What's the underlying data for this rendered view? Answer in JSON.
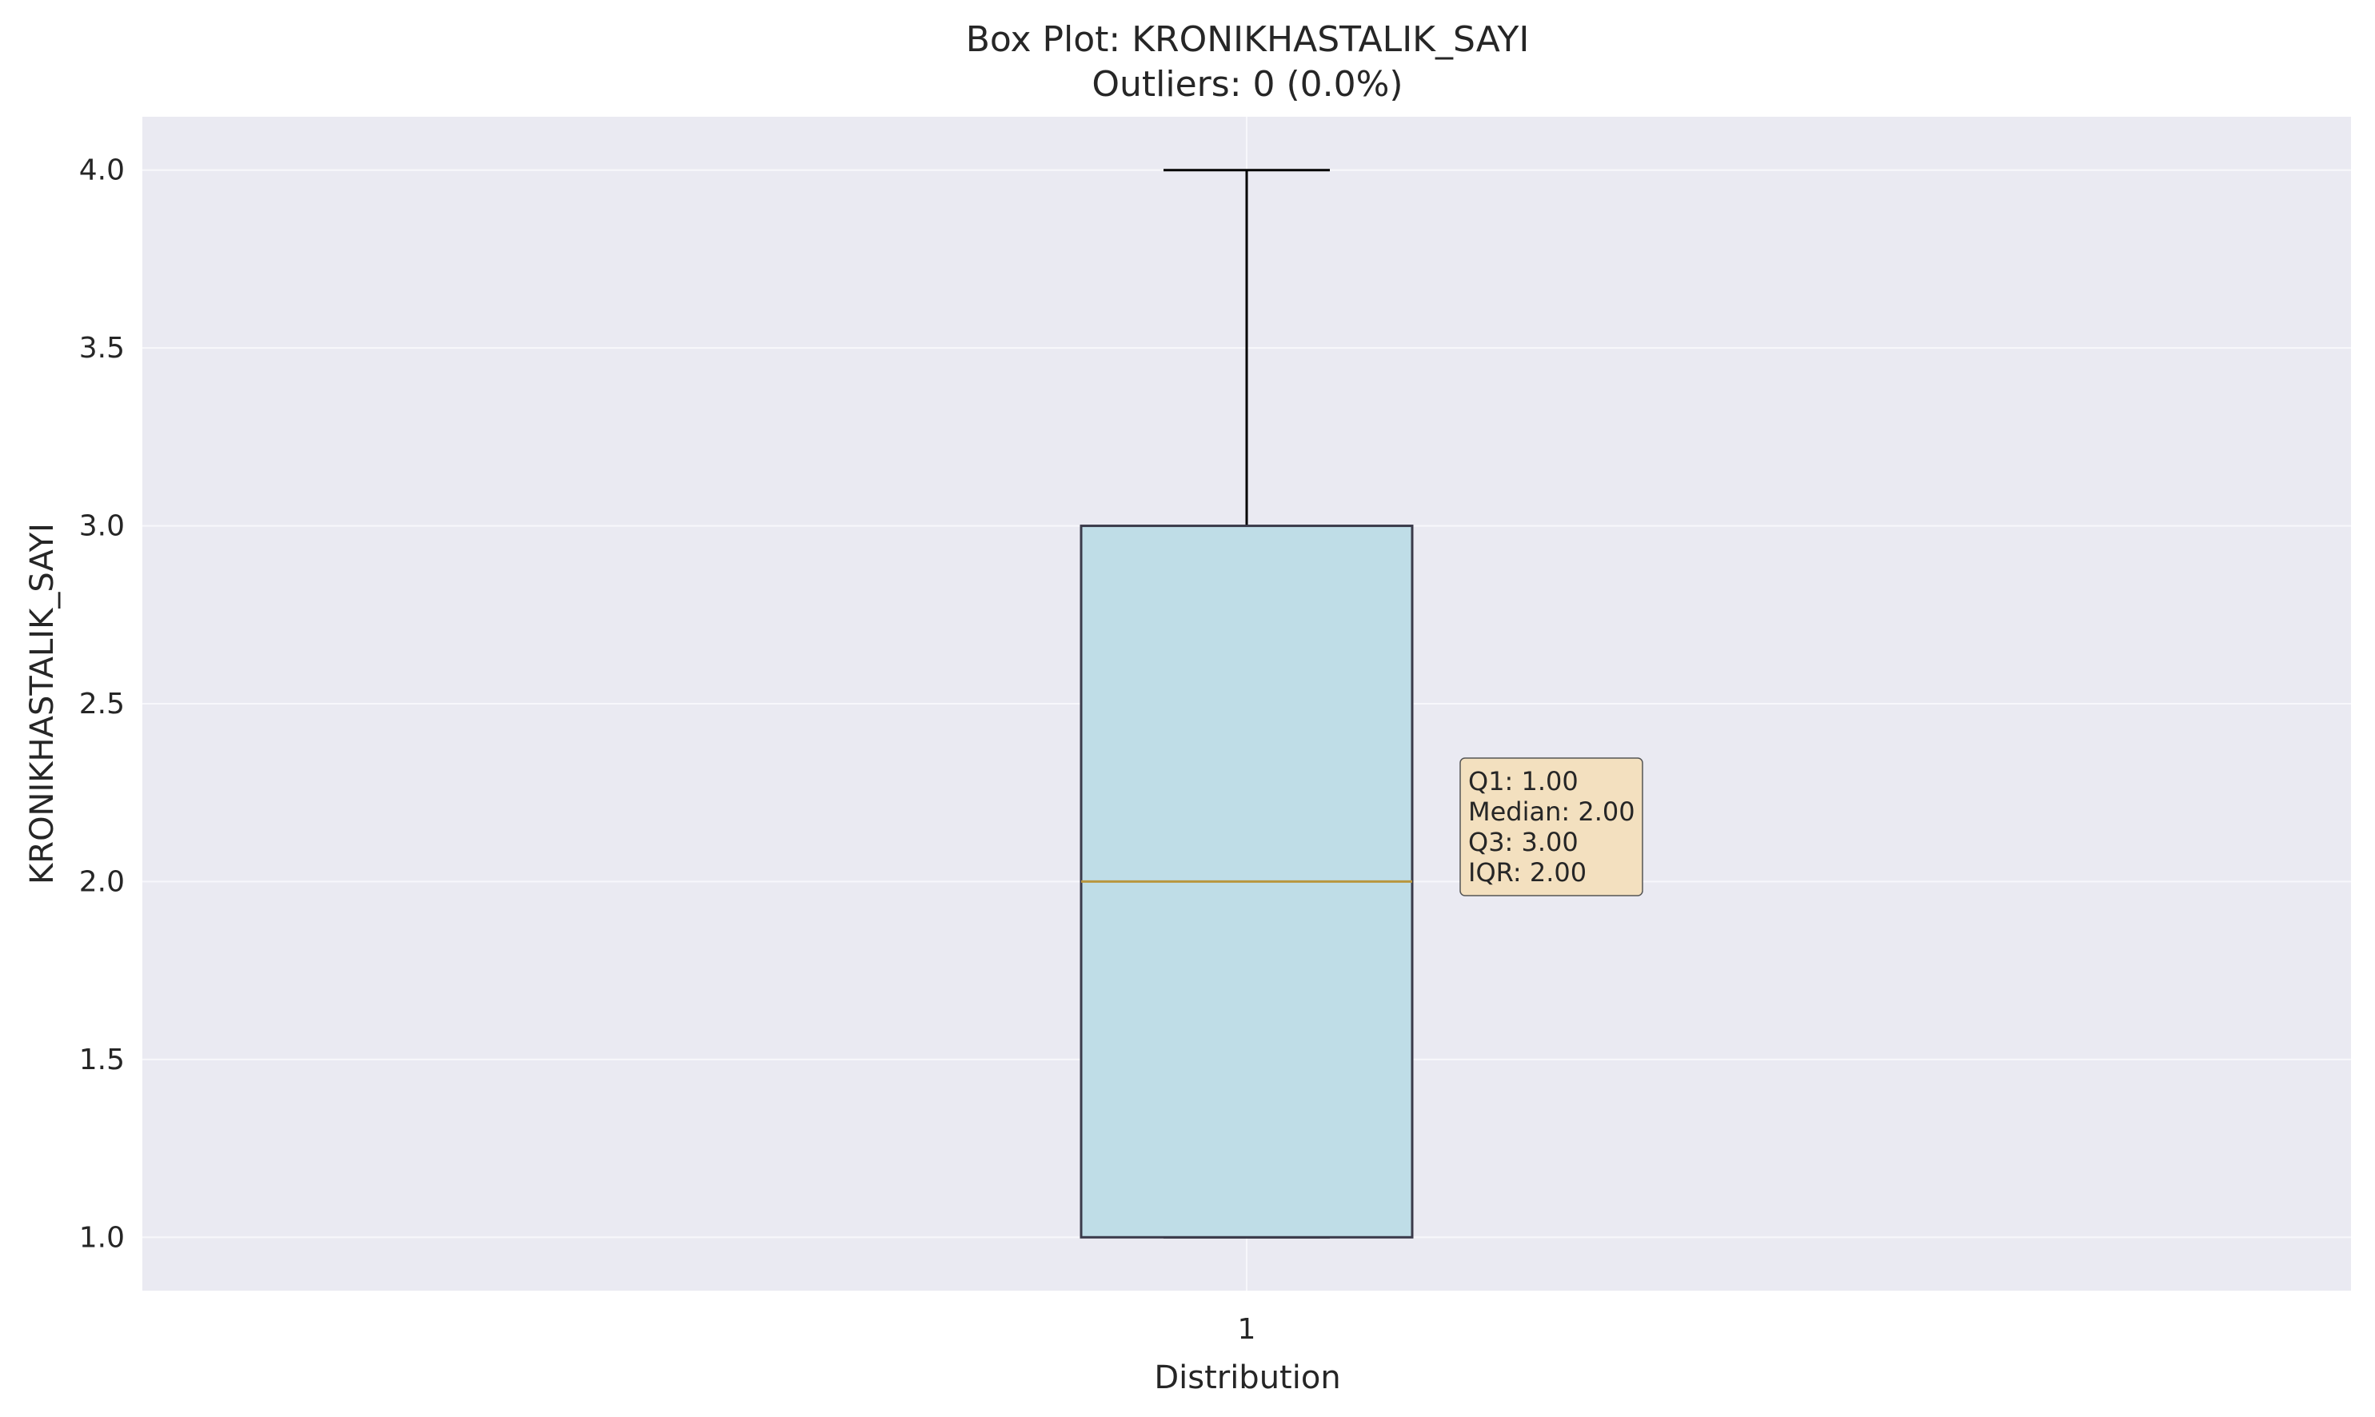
{
  "chart_data": {
    "type": "box",
    "title": "Box Plot: KRONIKHASTALIK_SAYI",
    "subtitle": "Outliers: 0 (0.0%)",
    "xlabel": "Distribution",
    "ylabel": "KRONIKHASTALIK_SAYI",
    "categories": [
      "1"
    ],
    "ylim": [
      0.85,
      4.15
    ],
    "yticks": [
      1.0,
      1.5,
      2.0,
      2.5,
      3.0,
      3.5,
      4.0
    ],
    "ytick_labels": [
      "1.0",
      "1.5",
      "2.0",
      "2.5",
      "3.0",
      "3.5",
      "4.0"
    ],
    "grid": true,
    "box": {
      "whisker_low": 1.0,
      "q1": 1.0,
      "median": 2.0,
      "q3": 3.0,
      "whisker_high": 4.0,
      "outliers": []
    },
    "stats_text": [
      "Q1: 1.00",
      "Median: 2.00",
      "Q3: 3.00",
      "IQR: 2.00"
    ],
    "colors": {
      "plot_background": "#eaeaf2",
      "box_fill": "#bfdde7",
      "box_edge": "#3a3a4a",
      "median_line": "#b8963e",
      "whisker": "#000000",
      "grid": "#f7f7fb",
      "stats_box_fill": "#f3e0bf",
      "stats_box_edge": "#555555"
    }
  }
}
